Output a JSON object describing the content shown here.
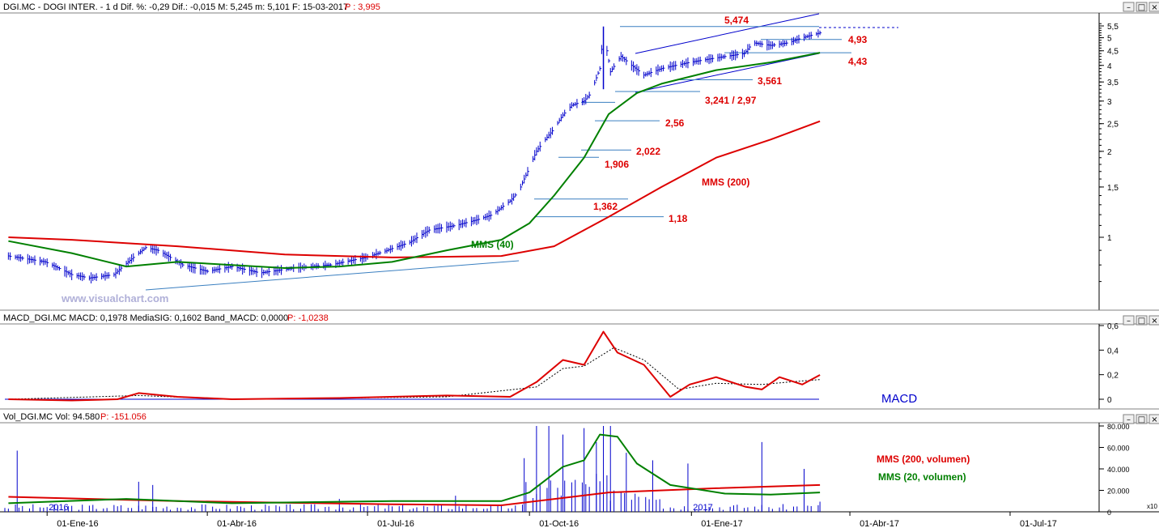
{
  "app": {
    "watermark": "www.visualchart.com"
  },
  "window_buttons": [
    "–",
    "□",
    "×"
  ],
  "price_panel": {
    "header": "DGI.MC - DOGI INTER. - 1 d Dif. %: -0,29 Dif.: -0,015 M: 5,245 m: 5,101 F: 15-03-2017",
    "header_p": "P : 3,995",
    "y_ticks": [
      "5,5",
      "5",
      "4,5",
      "4",
      "3,5",
      "3",
      "2,5",
      "2",
      "1,5",
      "1"
    ],
    "levels": [
      "5,474",
      "4,93",
      "4,43",
      "3,561",
      "3,241 / 2,97",
      "2,56",
      "2,022",
      "1,906",
      "1,362",
      "1,18"
    ],
    "ma_labels": {
      "mms200": "MMS (200)",
      "mms40": "MMS (40)"
    }
  },
  "macd_panel": {
    "header": "MACD_DGI.MC MACD: 0,1978 MediaSIG: 0,1602 Band_MACD: 0,0000",
    "header_p": "P: -1,0238",
    "y_ticks": [
      "0,6",
      "0,4",
      "0,2",
      "0"
    ],
    "label": "MACD"
  },
  "volume_panel": {
    "header": "Vol_DGI.MC Vol: 94.580",
    "header_p": "P: -151.056",
    "y_ticks": [
      "80.000",
      "60.000",
      "40.000",
      "20.000",
      "0"
    ],
    "scale_note": "x10",
    "year_labels": [
      "2016",
      "2017"
    ],
    "ma_labels": {
      "mms200": "MMS (200, volumen)",
      "mms20": "MMS (20, volumen)"
    }
  },
  "x_axis": {
    "labels": [
      "01-Ene-16",
      "01-Abr-16",
      "01-Jul-16",
      "01-Oct-16",
      "01-Ene-17",
      "01-Abr-17",
      "01-Jul-17"
    ]
  },
  "colors": {
    "price": "#0000cc",
    "mms40": "#008000",
    "mms200": "#dd0000",
    "macd": "#dd0000",
    "signal": "#000000",
    "labels": "#dd0000",
    "trendline": "#0000cc",
    "support": "#3a7fc0"
  },
  "chart_data": [
    {
      "type": "line",
      "name": "price",
      "scale": "log",
      "ylim": [
        0.6,
        6.1
      ],
      "y_ticks": [
        5.5,
        5,
        4.5,
        4,
        3.5,
        3,
        2.5,
        2,
        1.5,
        1
      ],
      "x_labels": [
        "01-Ene-16",
        "01-Abr-16",
        "01-Jul-16",
        "01-Oct-16",
        "01-Ene-17",
        "01-Abr-17",
        "01-Jul-17"
      ],
      "series": [
        {
          "name": "price",
          "x": [
            "2015-12-10",
            "2015-12-31",
            "2016-01-15",
            "2016-01-25",
            "2016-02-08",
            "2016-02-22",
            "2016-02-26",
            "2016-03-04",
            "2016-03-18",
            "2016-04-01",
            "2016-04-15",
            "2016-05-01",
            "2016-05-20",
            "2016-06-10",
            "2016-06-30",
            "2016-07-10",
            "2016-07-25",
            "2016-08-05",
            "2016-08-20",
            "2016-09-01",
            "2016-09-10",
            "2016-09-20",
            "2016-09-25",
            "2016-09-30",
            "2016-10-05",
            "2016-10-10",
            "2016-10-15",
            "2016-10-20",
            "2016-10-25",
            "2016-11-01",
            "2016-11-05",
            "2016-11-10",
            "2016-11-12",
            "2016-11-16",
            "2016-11-22",
            "2016-11-28",
            "2016-12-05",
            "2016-12-15",
            "2016-12-31",
            "2017-01-15",
            "2017-01-31",
            "2017-02-05",
            "2017-02-15",
            "2017-02-25",
            "2017-03-05",
            "2017-03-15"
          ],
          "y": [
            0.86,
            0.82,
            0.74,
            0.72,
            0.74,
            0.88,
            0.92,
            0.9,
            0.8,
            0.76,
            0.79,
            0.75,
            0.78,
            0.8,
            0.85,
            0.89,
            0.96,
            1.06,
            1.1,
            1.15,
            1.2,
            1.34,
            1.45,
            1.7,
            2.0,
            2.2,
            2.4,
            2.68,
            2.9,
            3.0,
            3.2,
            3.9,
            5.2,
            3.8,
            4.3,
            4.0,
            3.7,
            3.9,
            4.1,
            4.25,
            4.4,
            4.8,
            4.7,
            4.8,
            5.0,
            5.2
          ]
        },
        {
          "name": "MMS (40)",
          "x": [
            "2015-12-10",
            "2016-01-15",
            "2016-02-15",
            "2016-03-15",
            "2016-04-15",
            "2016-05-15",
            "2016-06-15",
            "2016-07-15",
            "2016-08-15",
            "2016-09-15",
            "2016-10-01",
            "2016-10-15",
            "2016-11-01",
            "2016-11-15",
            "2016-12-01",
            "2016-12-15",
            "2017-01-15",
            "2017-02-15",
            "2017-03-15"
          ],
          "y": [
            0.97,
            0.88,
            0.79,
            0.82,
            0.8,
            0.78,
            0.79,
            0.82,
            0.9,
            0.98,
            1.12,
            1.4,
            1.9,
            2.7,
            3.2,
            3.45,
            3.85,
            4.1,
            4.43
          ]
        },
        {
          "name": "MMS (200)",
          "x": [
            "2015-12-10",
            "2016-01-15",
            "2016-03-15",
            "2016-05-15",
            "2016-07-15",
            "2016-09-15",
            "2016-10-15",
            "2016-11-15",
            "2016-12-15",
            "2017-01-15",
            "2017-02-15",
            "2017-03-15"
          ],
          "y": [
            1.0,
            0.98,
            0.93,
            0.87,
            0.85,
            0.86,
            0.93,
            1.18,
            1.5,
            1.9,
            2.2,
            2.55
          ]
        }
      ]
    },
    {
      "type": "line",
      "name": "MACD",
      "ylim": [
        -0.05,
        0.65
      ],
      "y_ticks": [
        0.6,
        0.4,
        0.2,
        0
      ],
      "series": [
        {
          "name": "MACD",
          "x": [
            "2015-12-10",
            "2016-01-15",
            "2016-02-10",
            "2016-02-22",
            "2016-03-15",
            "2016-04-15",
            "2016-06-15",
            "2016-08-15",
            "2016-09-20",
            "2016-10-05",
            "2016-10-20",
            "2016-11-01",
            "2016-11-12",
            "2016-11-20",
            "2016-12-05",
            "2016-12-20",
            "2016-12-31",
            "2017-01-15",
            "2017-02-01",
            "2017-02-10",
            "2017-02-20",
            "2017-03-05",
            "2017-03-15"
          ],
          "y": [
            0,
            -0.01,
            0,
            0.05,
            0.02,
            0,
            0.01,
            0.03,
            0.02,
            0.14,
            0.32,
            0.28,
            0.55,
            0.38,
            0.28,
            0.02,
            0.12,
            0.18,
            0.1,
            0.08,
            0.18,
            0.12,
            0.198
          ]
        },
        {
          "name": "MediaSIG",
          "x": [
            "2015-12-10",
            "2016-02-22",
            "2016-04-15",
            "2016-08-15",
            "2016-10-05",
            "2016-10-20",
            "2016-11-01",
            "2016-11-18",
            "2016-12-05",
            "2016-12-25",
            "2017-01-15",
            "2017-02-10",
            "2017-02-25",
            "2017-03-15"
          ],
          "y": [
            0,
            0.03,
            0,
            0.02,
            0.1,
            0.25,
            0.27,
            0.42,
            0.32,
            0.08,
            0.13,
            0.12,
            0.14,
            0.16
          ]
        }
      ]
    },
    {
      "type": "bar",
      "name": "Volumen",
      "ylim": [
        0,
        80000
      ],
      "y_ticks": [
        80000,
        60000,
        40000,
        20000,
        0
      ],
      "series": [
        {
          "name": "Vol",
          "x": [
            "2015-12-15",
            "2016-02-22",
            "2016-03-01",
            "2016-06-15",
            "2016-08-20",
            "2016-09-28",
            "2016-10-05",
            "2016-10-12",
            "2016-10-20",
            "2016-11-01",
            "2016-11-08",
            "2016-11-12",
            "2016-11-16",
            "2016-11-25",
            "2016-12-10",
            "2016-12-30",
            "2017-02-10",
            "2017-03-06",
            "2017-03-15"
          ],
          "y": [
            57000,
            28000,
            25000,
            12000,
            15000,
            50000,
            80000,
            80000,
            72000,
            78000,
            65000,
            80000,
            80000,
            55000,
            48000,
            45000,
            65000,
            40000,
            9458
          ]
        },
        {
          "name": "MMS (20, volumen)",
          "x": [
            "2015-12-10",
            "2016-02-15",
            "2016-04-15",
            "2016-07-15",
            "2016-09-15",
            "2016-10-01",
            "2016-10-20",
            "2016-11-01",
            "2016-11-10",
            "2016-11-20",
            "2016-12-01",
            "2016-12-20",
            "2017-01-20",
            "2017-02-15",
            "2017-03-15"
          ],
          "y": [
            8000,
            12000,
            8000,
            10000,
            10000,
            18000,
            42000,
            48000,
            72000,
            70000,
            45000,
            25000,
            17000,
            16000,
            18000
          ]
        },
        {
          "name": "MMS (200, volumen)",
          "x": [
            "2015-12-10",
            "2016-03-15",
            "2016-07-15",
            "2016-09-15",
            "2016-11-15",
            "2017-01-15",
            "2017-03-15"
          ],
          "y": [
            14000,
            10000,
            7000,
            6000,
            18000,
            22000,
            25000
          ]
        }
      ]
    }
  ]
}
